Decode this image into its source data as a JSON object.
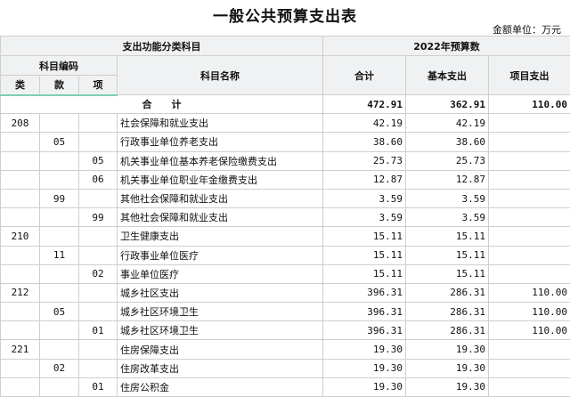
{
  "title": "一般公共预算支出表",
  "unit": "金额单位：万元",
  "headers": {
    "func": "支出功能分类科目",
    "year": "2022年预算数",
    "code": "科目编码",
    "name": "科目名称",
    "lei": "类",
    "kuan": "款",
    "xiang": "项",
    "total": "合计",
    "basic": "基本支出",
    "project": "项目支出"
  },
  "total_row": {
    "label": "合　　计",
    "total": "472.91",
    "basic": "362.91",
    "project": "110.00"
  },
  "rows": [
    {
      "lei": "208",
      "kuan": "",
      "xiang": "",
      "name": "社会保障和就业支出",
      "total": "42.19",
      "basic": "42.19",
      "project": ""
    },
    {
      "lei": "",
      "kuan": "05",
      "xiang": "",
      "name": "行政事业单位养老支出",
      "total": "38.60",
      "basic": "38.60",
      "project": ""
    },
    {
      "lei": "",
      "kuan": "",
      "xiang": "05",
      "name": "机关事业单位基本养老保险缴费支出",
      "total": "25.73",
      "basic": "25.73",
      "project": ""
    },
    {
      "lei": "",
      "kuan": "",
      "xiang": "06",
      "name": "机关事业单位职业年金缴费支出",
      "total": "12.87",
      "basic": "12.87",
      "project": ""
    },
    {
      "lei": "",
      "kuan": "99",
      "xiang": "",
      "name": "其他社会保障和就业支出",
      "total": "3.59",
      "basic": "3.59",
      "project": ""
    },
    {
      "lei": "",
      "kuan": "",
      "xiang": "99",
      "name": "其他社会保障和就业支出",
      "total": "3.59",
      "basic": "3.59",
      "project": ""
    },
    {
      "lei": "210",
      "kuan": "",
      "xiang": "",
      "name": "卫生健康支出",
      "total": "15.11",
      "basic": "15.11",
      "project": ""
    },
    {
      "lei": "",
      "kuan": "11",
      "xiang": "",
      "name": "行政事业单位医疗",
      "total": "15.11",
      "basic": "15.11",
      "project": ""
    },
    {
      "lei": "",
      "kuan": "",
      "xiang": "02",
      "name": "事业单位医疗",
      "total": "15.11",
      "basic": "15.11",
      "project": ""
    },
    {
      "lei": "212",
      "kuan": "",
      "xiang": "",
      "name": "城乡社区支出",
      "total": "396.31",
      "basic": "286.31",
      "project": "110.00"
    },
    {
      "lei": "",
      "kuan": "05",
      "xiang": "",
      "name": "城乡社区环境卫生",
      "total": "396.31",
      "basic": "286.31",
      "project": "110.00"
    },
    {
      "lei": "",
      "kuan": "",
      "xiang": "01",
      "name": "城乡社区环境卫生",
      "total": "396.31",
      "basic": "286.31",
      "project": "110.00"
    },
    {
      "lei": "221",
      "kuan": "",
      "xiang": "",
      "name": "住房保障支出",
      "total": "19.30",
      "basic": "19.30",
      "project": ""
    },
    {
      "lei": "",
      "kuan": "02",
      "xiang": "",
      "name": "住房改革支出",
      "total": "19.30",
      "basic": "19.30",
      "project": ""
    },
    {
      "lei": "",
      "kuan": "",
      "xiang": "01",
      "name": "住房公积金",
      "total": "19.30",
      "basic": "19.30",
      "project": ""
    }
  ]
}
